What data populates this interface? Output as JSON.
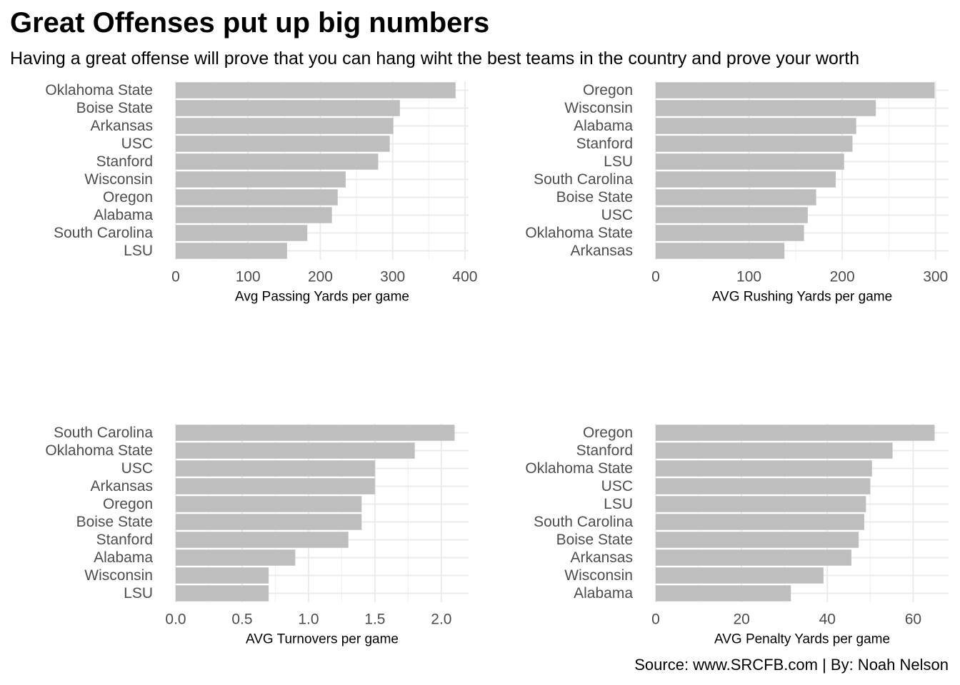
{
  "title": "Great Offenses put up big numbers",
  "subtitle": "Having a great offense will prove that you can hang wiht the best teams in the country and prove your worth",
  "caption": "Source: www.SRCFB.com | By: Noah Nelson",
  "bar_color": "#bebebe",
  "chart_data": [
    {
      "type": "bar",
      "orientation": "horizontal",
      "xlabel": "Avg Passing Yards per game",
      "categories": [
        "Oklahoma State",
        "Boise State",
        "Arkansas",
        "USC",
        "Stanford",
        "Wisconsin",
        "Oregon",
        "Alabama",
        "South Carolina",
        "LSU"
      ],
      "values": [
        387,
        310,
        301,
        296,
        280,
        235,
        224,
        216,
        182,
        154
      ],
      "xlim": [
        0,
        405
      ],
      "ticks": [
        0,
        100,
        200,
        300,
        400
      ],
      "tick_labels": [
        "0",
        "100",
        "200",
        "300",
        "400"
      ],
      "grid": true
    },
    {
      "type": "bar",
      "orientation": "horizontal",
      "xlabel": "AVG Rushing Yards per game",
      "categories": [
        "Oregon",
        "Wisconsin",
        "Alabama",
        "Stanford",
        "LSU",
        "South Carolina",
        "Boise State",
        "USC",
        "Oklahoma State",
        "Arkansas"
      ],
      "values": [
        299,
        236,
        215,
        211,
        202,
        193,
        172,
        163,
        159,
        138
      ],
      "xlim": [
        0,
        314
      ],
      "ticks": [
        0,
        100,
        200,
        300
      ],
      "tick_labels": [
        "0",
        "100",
        "200",
        "300"
      ],
      "grid": true
    },
    {
      "type": "bar",
      "orientation": "horizontal",
      "xlabel": "AVG Turnovers per game",
      "categories": [
        "South Carolina",
        "Oklahoma State",
        "USC",
        "Arkansas",
        "Oregon",
        "Boise State",
        "Stanford",
        "Alabama",
        "Wisconsin",
        "LSU"
      ],
      "values": [
        2.1,
        1.8,
        1.5,
        1.5,
        1.4,
        1.4,
        1.3,
        0.9,
        0.7,
        0.7
      ],
      "xlim": [
        0,
        2.205
      ],
      "ticks": [
        0,
        0.5,
        1.0,
        1.5,
        2.0
      ],
      "tick_labels": [
        "0.0",
        "0.5",
        "1.0",
        "1.5",
        "2.0"
      ],
      "grid": true
    },
    {
      "type": "bar",
      "orientation": "horizontal",
      "xlabel": "AVG Penalty Yards per game",
      "categories": [
        "Oregon",
        "Stanford",
        "Oklahoma State",
        "USC",
        "LSU",
        "South Carolina",
        "Boise State",
        "Arkansas",
        "Wisconsin",
        "Alabama"
      ],
      "values": [
        65,
        55.2,
        50.4,
        50,
        49,
        48.6,
        47.3,
        45.6,
        39.1,
        31.5
      ],
      "xlim": [
        0,
        68.25
      ],
      "ticks": [
        0,
        20,
        40,
        60
      ],
      "tick_labels": [
        "0",
        "20",
        "40",
        "60"
      ],
      "grid": true
    }
  ]
}
